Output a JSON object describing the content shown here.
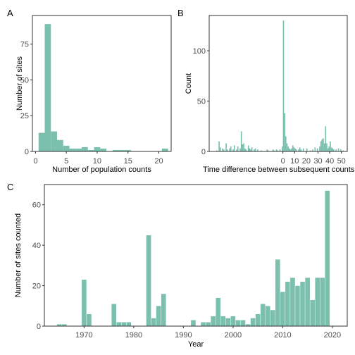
{
  "chart_data": [
    {
      "type": "bar",
      "panel_label": "A",
      "xlabel": "Number of population counts",
      "ylabel": "Number of sites",
      "xlim": [
        -0.5,
        22
      ],
      "ylim": [
        0,
        95
      ],
      "xticks": [
        0,
        5,
        10,
        15,
        20
      ],
      "yticks": [
        0,
        25,
        50,
        75
      ],
      "bar_color": "#7bbfad",
      "bins": [
        {
          "x0": 0.5,
          "x1": 1.5,
          "value": 13
        },
        {
          "x0": 1.5,
          "x1": 2.5,
          "value": 89
        },
        {
          "x0": 2.5,
          "x1": 3.5,
          "value": 14
        },
        {
          "x0": 3.5,
          "x1": 4.5,
          "value": 8
        },
        {
          "x0": 4.5,
          "x1": 5.5,
          "value": 4
        },
        {
          "x0": 5.5,
          "x1": 6.5,
          "value": 2
        },
        {
          "x0": 6.5,
          "x1": 7.5,
          "value": 2
        },
        {
          "x0": 7.5,
          "x1": 8.5,
          "value": 3
        },
        {
          "x0": 8.5,
          "x1": 9.5,
          "value": 1
        },
        {
          "x0": 9.5,
          "x1": 10.5,
          "value": 3
        },
        {
          "x0": 10.5,
          "x1": 11.5,
          "value": 2
        },
        {
          "x0": 12.5,
          "x1": 13.5,
          "value": 1
        },
        {
          "x0": 13.5,
          "x1": 14.5,
          "value": 1
        },
        {
          "x0": 14.5,
          "x1": 15.5,
          "value": 1
        },
        {
          "x0": 20.5,
          "x1": 21.5,
          "value": 2
        }
      ]
    },
    {
      "type": "bar",
      "panel_label": "B",
      "xlabel": "Time difference between subsequent counts",
      "ylabel": "Count",
      "xlim": [
        -63,
        55
      ],
      "ylim": [
        0,
        135
      ],
      "xticks": [
        0,
        10,
        20,
        30,
        40,
        50
      ],
      "yticks": [
        0,
        50,
        100
      ],
      "bar_color": "#7bbfad",
      "bins": [
        {
          "x0": -57,
          "x1": -56,
          "value": 1
        },
        {
          "x0": -55,
          "x1": -54,
          "value": 10
        },
        {
          "x0": -54,
          "x1": -53,
          "value": 4
        },
        {
          "x0": -52,
          "x1": -51,
          "value": 3
        },
        {
          "x0": -51,
          "x1": -50,
          "value": 2
        },
        {
          "x0": -49,
          "x1": -48,
          "value": 8
        },
        {
          "x0": -48,
          "x1": -47,
          "value": 2
        },
        {
          "x0": -46,
          "x1": -45,
          "value": 3
        },
        {
          "x0": -45,
          "x1": -44,
          "value": 5
        },
        {
          "x0": -43,
          "x1": -42,
          "value": 2
        },
        {
          "x0": -42,
          "x1": -41,
          "value": 6
        },
        {
          "x0": -40,
          "x1": -39,
          "value": 2
        },
        {
          "x0": -39,
          "x1": -38,
          "value": 5
        },
        {
          "x0": -37,
          "x1": -36,
          "value": 3
        },
        {
          "x0": -36,
          "x1": -35,
          "value": 20
        },
        {
          "x0": -35,
          "x1": -34,
          "value": 7
        },
        {
          "x0": -34,
          "x1": -33,
          "value": 8
        },
        {
          "x0": -33,
          "x1": -32,
          "value": 3
        },
        {
          "x0": -32,
          "x1": -31,
          "value": 2
        },
        {
          "x0": -30,
          "x1": -29,
          "value": 6
        },
        {
          "x0": -29,
          "x1": -28,
          "value": 3
        },
        {
          "x0": -28,
          "x1": -27,
          "value": 2
        },
        {
          "x0": -27,
          "x1": -26,
          "value": 4
        },
        {
          "x0": -25,
          "x1": -24,
          "value": 2
        },
        {
          "x0": -24,
          "x1": -23,
          "value": 3
        },
        {
          "x0": -22,
          "x1": -21,
          "value": 2
        },
        {
          "x0": -19,
          "x1": -18,
          "value": 1
        },
        {
          "x0": -14,
          "x1": -13,
          "value": 2
        },
        {
          "x0": -13,
          "x1": -12,
          "value": 1
        },
        {
          "x0": -9,
          "x1": -8,
          "value": 2
        },
        {
          "x0": -8,
          "x1": -7,
          "value": 1
        },
        {
          "x0": -6,
          "x1": -5,
          "value": 2
        },
        {
          "x0": -5,
          "x1": -4,
          "value": 1
        },
        {
          "x0": -3,
          "x1": -2,
          "value": 2
        },
        {
          "x0": -1,
          "x1": 0,
          "value": 5
        },
        {
          "x0": 0,
          "x1": 1,
          "value": 130
        },
        {
          "x0": 1,
          "x1": 2,
          "value": 38
        },
        {
          "x0": 2,
          "x1": 3,
          "value": 15
        },
        {
          "x0": 3,
          "x1": 4,
          "value": 8
        },
        {
          "x0": 4,
          "x1": 5,
          "value": 5
        },
        {
          "x0": 5,
          "x1": 6,
          "value": 3
        },
        {
          "x0": 6,
          "x1": 7,
          "value": 2
        },
        {
          "x0": 7,
          "x1": 8,
          "value": 3
        },
        {
          "x0": 8,
          "x1": 9,
          "value": 6
        },
        {
          "x0": 9,
          "x1": 10,
          "value": 4
        },
        {
          "x0": 10,
          "x1": 11,
          "value": 3
        },
        {
          "x0": 11,
          "x1": 12,
          "value": 2
        },
        {
          "x0": 13,
          "x1": 14,
          "value": 2
        },
        {
          "x0": 14,
          "x1": 15,
          "value": 4
        },
        {
          "x0": 15,
          "x1": 16,
          "value": 2
        },
        {
          "x0": 17,
          "x1": 18,
          "value": 3
        },
        {
          "x0": 20,
          "x1": 21,
          "value": 3
        },
        {
          "x0": 23,
          "x1": 24,
          "value": 1
        },
        {
          "x0": 25,
          "x1": 26,
          "value": 2
        },
        {
          "x0": 27,
          "x1": 28,
          "value": 4
        },
        {
          "x0": 29,
          "x1": 30,
          "value": 3
        },
        {
          "x0": 31,
          "x1": 32,
          "value": 5
        },
        {
          "x0": 32,
          "x1": 33,
          "value": 10
        },
        {
          "x0": 33,
          "x1": 34,
          "value": 12
        },
        {
          "x0": 34,
          "x1": 35,
          "value": 13
        },
        {
          "x0": 35,
          "x1": 36,
          "value": 8
        },
        {
          "x0": 36,
          "x1": 37,
          "value": 25
        },
        {
          "x0": 37,
          "x1": 38,
          "value": 8
        },
        {
          "x0": 38,
          "x1": 39,
          "value": 3
        },
        {
          "x0": 39,
          "x1": 40,
          "value": 5
        },
        {
          "x0": 40,
          "x1": 41,
          "value": 10
        },
        {
          "x0": 41,
          "x1": 42,
          "value": 4
        },
        {
          "x0": 42,
          "x1": 43,
          "value": 3
        },
        {
          "x0": 43,
          "x1": 44,
          "value": 2
        },
        {
          "x0": 45,
          "x1": 46,
          "value": 2
        },
        {
          "x0": 47,
          "x1": 48,
          "value": 3
        },
        {
          "x0": 49,
          "x1": 50,
          "value": 2
        },
        {
          "x0": 51,
          "x1": 52,
          "value": 1
        }
      ]
    },
    {
      "type": "bar",
      "panel_label": "C",
      "xlabel": "Year",
      "ylabel": "Number of sites counted",
      "xlim": [
        1962,
        2023
      ],
      "ylim": [
        0,
        70
      ],
      "xticks": [
        1970,
        1980,
        1990,
        2000,
        2010,
        2020
      ],
      "yticks": [
        0,
        20,
        40,
        60
      ],
      "bar_color": "#7bbfad",
      "years": [
        1965,
        1966,
        1970,
        1971,
        1976,
        1977,
        1978,
        1979,
        1983,
        1984,
        1985,
        1986,
        1992,
        1994,
        1995,
        1996,
        1997,
        1998,
        1999,
        2000,
        2001,
        2002,
        2003,
        2004,
        2005,
        2006,
        2007,
        2008,
        2009,
        2010,
        2011,
        2012,
        2013,
        2014,
        2015,
        2016,
        2017,
        2018,
        2019
      ],
      "values": [
        1,
        1,
        23,
        6,
        11,
        2,
        2,
        2,
        45,
        4,
        10,
        16,
        3,
        2,
        2,
        5,
        14,
        5,
        4,
        5,
        3,
        3,
        1,
        4,
        6,
        11,
        10,
        8,
        33,
        17,
        22,
        24,
        20,
        22,
        24,
        13,
        24,
        24,
        67
      ]
    }
  ]
}
